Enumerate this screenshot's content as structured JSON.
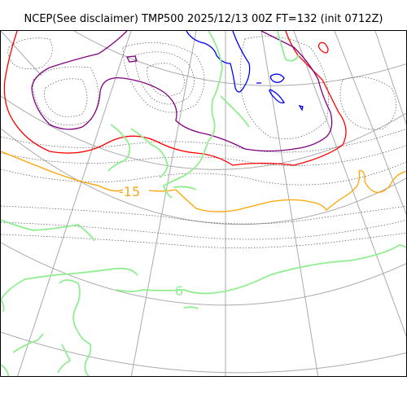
{
  "title": "NCEP(See disclaimer) TMP500 2025/12/13 00Z FT=132 (init 0712Z)",
  "colors": {
    "graticule": "#aaaaaa",
    "minor_contours": "#555555",
    "red_isotherm": "#ff0000",
    "purple_isotherm": "#800080",
    "blue_isotherm": "#0000ff",
    "orange_isotherm": "#ffa500",
    "green_coastline": "#90ee90"
  },
  "labels": {
    "orange_contour": "-15",
    "green_contour": "6"
  }
}
